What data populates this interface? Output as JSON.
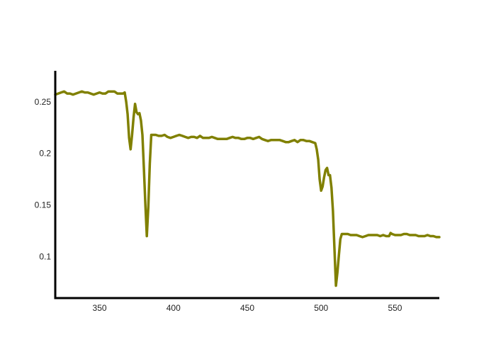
{
  "chart_data": {
    "type": "line",
    "title": "",
    "xlabel": "",
    "ylabel": "",
    "xlim": [
      320,
      580
    ],
    "ylim": [
      0.06,
      0.28
    ],
    "grid": false,
    "legend": "none",
    "x_ticks": [
      {
        "value": 350,
        "label": "350"
      },
      {
        "value": 400,
        "label": "400"
      },
      {
        "value": 450,
        "label": "450"
      },
      {
        "value": 500,
        "label": "500"
      },
      {
        "value": 550,
        "label": "550"
      }
    ],
    "y_ticks": [
      {
        "value": 0.1,
        "label": "0.1"
      },
      {
        "value": 0.15,
        "label": "0.15"
      },
      {
        "value": 0.2,
        "label": "0.2"
      },
      {
        "value": 0.25,
        "label": "0.25"
      }
    ],
    "series": [
      {
        "color": "#808000",
        "x": [
          320,
          322,
          324,
          326,
          328,
          330,
          332,
          334,
          336,
          338,
          340,
          342,
          344,
          346,
          348,
          350,
          352,
          354,
          356,
          358,
          360,
          362,
          364,
          366,
          367,
          368,
          369,
          370,
          371,
          372,
          373,
          374,
          375,
          376,
          377,
          378,
          379,
          380,
          381,
          382,
          383,
          384,
          385,
          386,
          388,
          390,
          392,
          394,
          396,
          398,
          400,
          402,
          404,
          406,
          408,
          410,
          412,
          414,
          416,
          418,
          420,
          422,
          424,
          426,
          428,
          430,
          432,
          434,
          436,
          438,
          440,
          442,
          444,
          446,
          448,
          450,
          452,
          454,
          456,
          458,
          460,
          462,
          464,
          466,
          468,
          470,
          472,
          474,
          476,
          478,
          480,
          482,
          484,
          486,
          488,
          490,
          492,
          494,
          496,
          497,
          498,
          499,
          500,
          501,
          502,
          503,
          504,
          505,
          506,
          507,
          508,
          509,
          510,
          511,
          512,
          513,
          514,
          515,
          516,
          518,
          520,
          522,
          524,
          526,
          528,
          530,
          532,
          534,
          536,
          538,
          540,
          542,
          544,
          546,
          547,
          548,
          550,
          552,
          554,
          556,
          558,
          560,
          562,
          564,
          566,
          568,
          570,
          572,
          574,
          576,
          578,
          580
        ],
        "y": [
          0.257,
          0.258,
          0.259,
          0.26,
          0.258,
          0.258,
          0.257,
          0.258,
          0.259,
          0.26,
          0.259,
          0.259,
          0.258,
          0.257,
          0.258,
          0.259,
          0.258,
          0.258,
          0.26,
          0.26,
          0.26,
          0.258,
          0.258,
          0.258,
          0.259,
          0.25,
          0.238,
          0.215,
          0.204,
          0.218,
          0.235,
          0.248,
          0.24,
          0.238,
          0.239,
          0.232,
          0.218,
          0.185,
          0.15,
          0.12,
          0.148,
          0.19,
          0.218,
          0.218,
          0.218,
          0.217,
          0.217,
          0.218,
          0.216,
          0.215,
          0.216,
          0.217,
          0.218,
          0.217,
          0.216,
          0.215,
          0.216,
          0.216,
          0.215,
          0.217,
          0.215,
          0.215,
          0.215,
          0.216,
          0.215,
          0.214,
          0.214,
          0.214,
          0.214,
          0.215,
          0.216,
          0.215,
          0.215,
          0.214,
          0.214,
          0.215,
          0.215,
          0.214,
          0.215,
          0.216,
          0.214,
          0.213,
          0.212,
          0.213,
          0.213,
          0.213,
          0.213,
          0.212,
          0.211,
          0.211,
          0.212,
          0.213,
          0.211,
          0.213,
          0.213,
          0.212,
          0.212,
          0.211,
          0.21,
          0.204,
          0.194,
          0.175,
          0.164,
          0.168,
          0.177,
          0.184,
          0.186,
          0.179,
          0.179,
          0.167,
          0.144,
          0.108,
          0.072,
          0.085,
          0.101,
          0.117,
          0.122,
          0.122,
          0.122,
          0.122,
          0.121,
          0.121,
          0.121,
          0.12,
          0.119,
          0.12,
          0.121,
          0.121,
          0.121,
          0.121,
          0.12,
          0.121,
          0.12,
          0.12,
          0.123,
          0.122,
          0.121,
          0.121,
          0.121,
          0.122,
          0.122,
          0.121,
          0.121,
          0.121,
          0.12,
          0.12,
          0.12,
          0.121,
          0.12,
          0.12,
          0.119,
          0.119
        ]
      }
    ]
  }
}
